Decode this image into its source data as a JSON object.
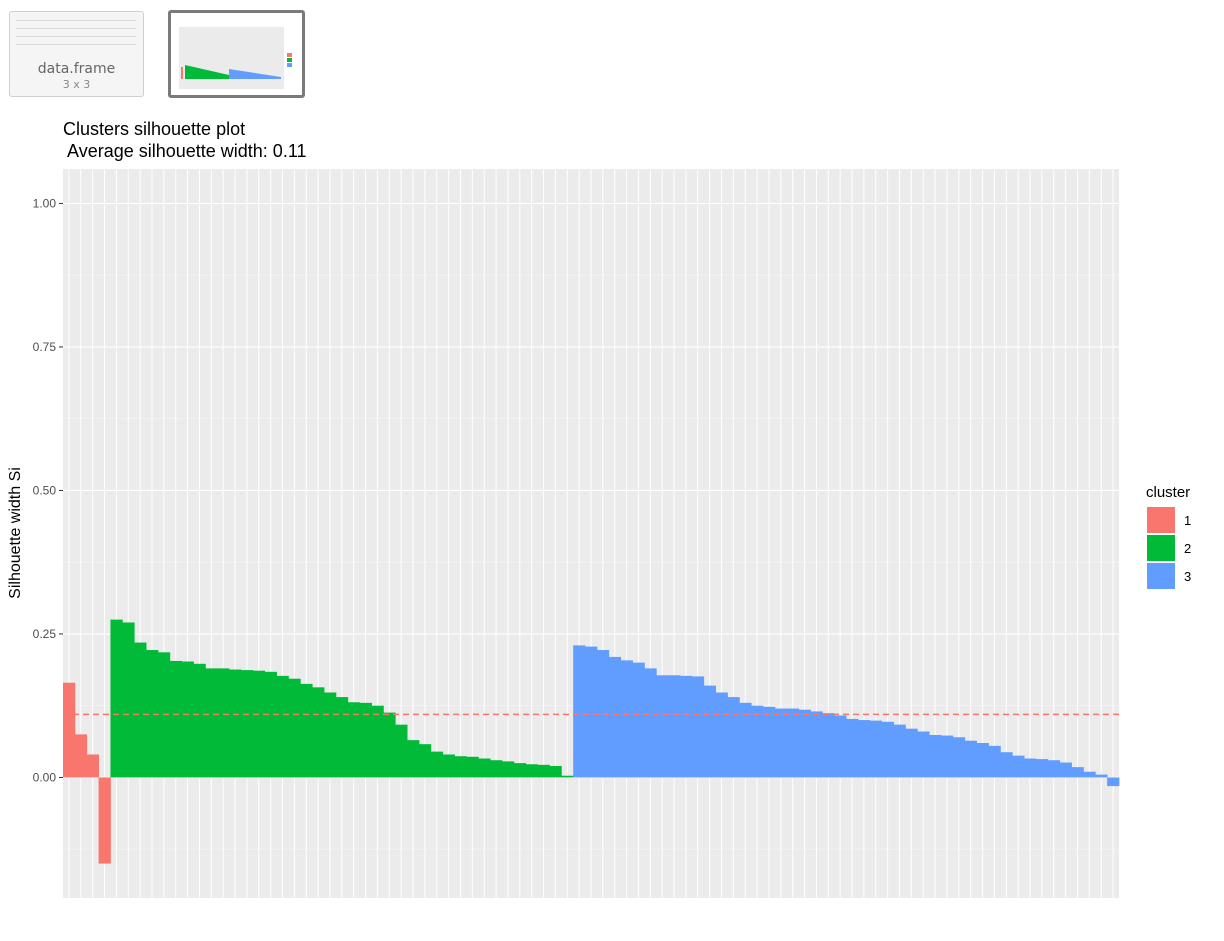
{
  "thumbnails": [
    {
      "title": "data.frame",
      "subtitle": "3 x 3"
    },
    {
      "title": "",
      "subtitle": ""
    }
  ],
  "chart_data": {
    "type": "bar",
    "title": "Clusters silhouette plot",
    "subtitle": " Average silhouette width: 0.11",
    "xlabel": "",
    "ylabel": "Silhouette width Si",
    "ylim": [
      -0.21,
      1.06
    ],
    "yticks": [
      "0.00",
      "0.25",
      "0.50",
      "0.75",
      "1.00"
    ],
    "ytick_values": [
      0,
      0.25,
      0.5,
      0.75,
      1.0
    ],
    "average_line": 0.11,
    "average_line_color": "#F8766D",
    "grid": true,
    "legend": {
      "title": "cluster",
      "position": "right"
    },
    "colors": {
      "1": "#F8766D",
      "2": "#00BA38",
      "3": "#619CFF"
    },
    "series": [
      {
        "name": "1",
        "values": [
          0.165,
          0.075,
          0.04,
          -0.15
        ]
      },
      {
        "name": "2",
        "values": [
          0.275,
          0.27,
          0.235,
          0.222,
          0.218,
          0.203,
          0.202,
          0.198,
          0.19,
          0.19,
          0.188,
          0.187,
          0.186,
          0.184,
          0.177,
          0.172,
          0.163,
          0.157,
          0.148,
          0.14,
          0.131,
          0.13,
          0.125,
          0.113,
          0.092,
          0.065,
          0.058,
          0.045,
          0.04,
          0.037,
          0.036,
          0.033,
          0.03,
          0.028,
          0.025,
          0.023,
          0.022,
          0.02,
          0.003
        ]
      },
      {
        "name": "3",
        "values": [
          0.23,
          0.228,
          0.222,
          0.21,
          0.204,
          0.2,
          0.19,
          0.178,
          0.178,
          0.177,
          0.176,
          0.16,
          0.148,
          0.14,
          0.13,
          0.125,
          0.123,
          0.12,
          0.12,
          0.118,
          0.115,
          0.112,
          0.108,
          0.102,
          0.1,
          0.099,
          0.097,
          0.092,
          0.085,
          0.08,
          0.074,
          0.073,
          0.07,
          0.064,
          0.06,
          0.055,
          0.044,
          0.038,
          0.033,
          0.032,
          0.03,
          0.026,
          0.018,
          0.01,
          0.005,
          -0.015
        ]
      }
    ]
  }
}
